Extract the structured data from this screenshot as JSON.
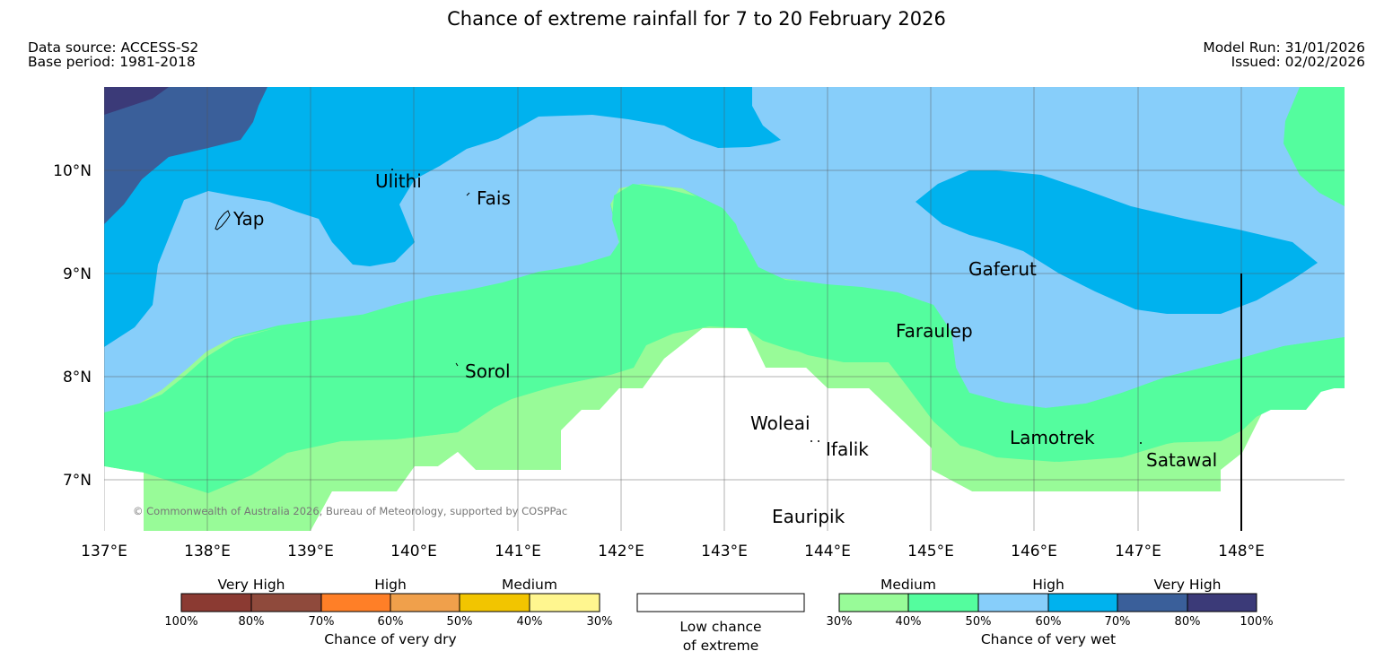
{
  "title": "Chance of extreme rainfall for 7 to 20 February 2026",
  "meta": {
    "data_source": "Data source: ACCESS-S2",
    "base_period": "Base period: 1981-2018",
    "model_run": "Model Run: 31/01/2026",
    "issued": "Issued: 02/02/2026"
  },
  "axes": {
    "lat_labels": [
      "10°N",
      "9°N",
      "8°N",
      "7°N"
    ],
    "lon_labels": [
      "137°E",
      "138°E",
      "139°E",
      "140°E",
      "141°E",
      "142°E",
      "143°E",
      "144°E",
      "145°E",
      "146°E",
      "147°E",
      "148°E"
    ]
  },
  "places": [
    "Ulithi",
    "Fais",
    "Yap",
    "Gaferut",
    "Faraulep",
    "Sorol",
    "Woleai",
    "Ifalik",
    "Lamotrek",
    "Satawal",
    "Eauripik"
  ],
  "copyright": "© Commonwealth of Australia 2026, Bureau of Meteorology, supported by COSPPac",
  "colors": {
    "dry": [
      "#8b3a32",
      "#8f4a3c",
      "#ff7f27",
      "#f0a04b",
      "#f2c500",
      "#fff68f"
    ],
    "wet": [
      "#98fb98",
      "#54fd9e",
      "#87cefa",
      "#00b2ee",
      "#3a5f9a",
      "#3b3a78"
    ],
    "low": "#ffffff"
  },
  "legend": {
    "dry": {
      "categories": [
        "Very High",
        "High",
        "Medium"
      ],
      "ticks": [
        "100%",
        "80%",
        "70%",
        "60%",
        "50%",
        "40%",
        "30%"
      ],
      "label": "Chance of very dry"
    },
    "low": {
      "line1": "Low chance",
      "line2": "of extreme"
    },
    "wet": {
      "categories": [
        "Medium",
        "High",
        "Very High"
      ],
      "ticks": [
        "30%",
        "40%",
        "50%",
        "60%",
        "70%",
        "80%",
        "100%"
      ],
      "label": "Chance of very wet"
    }
  }
}
